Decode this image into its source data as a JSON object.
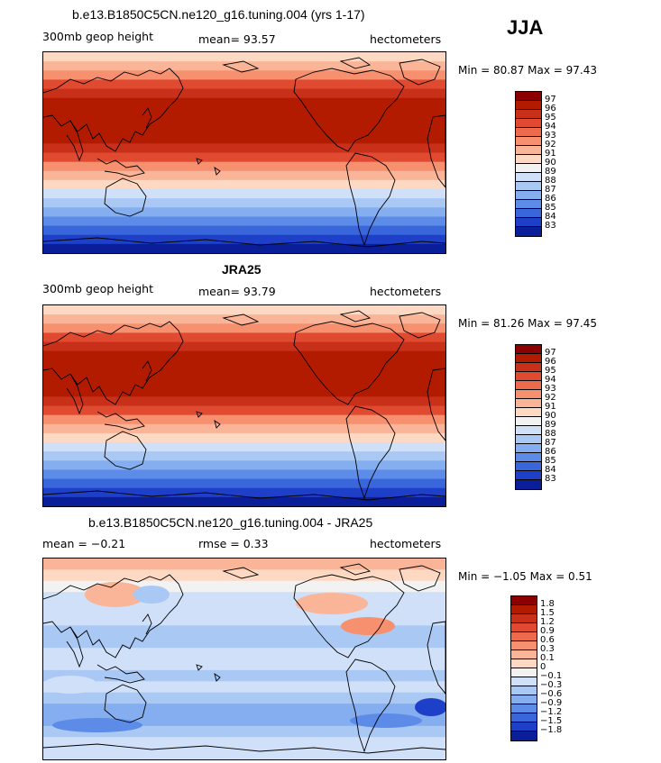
{
  "season": "JJA",
  "panels": [
    {
      "title": "b.e13.B1850C5CN.ne120_g16.tuning.004 (yrs 1-17)",
      "left_label": "300mb geop height",
      "center_label": "mean=  93.57",
      "right_label": "hectometers",
      "stats": "Min =  80.87 Max =  97.43",
      "colorbar": {
        "labels": [
          "97",
          "96",
          "95",
          "94",
          "93",
          "92",
          "91",
          "90",
          "89",
          "88",
          "87",
          "86",
          "85",
          "84",
          "83"
        ],
        "colors": [
          "#8b0000",
          "#b31b00",
          "#c9301a",
          "#e04a30",
          "#ee6a4c",
          "#f6906f",
          "#fab598",
          "#fdd9c4",
          "#f2f2f2",
          "#cfe0f8",
          "#a9c8f4",
          "#84aef0",
          "#5c8ce8",
          "#3a66dc",
          "#1e40c8",
          "#0a1e9a"
        ]
      },
      "bands": [
        "#fdd9c4",
        "#fab598",
        "#f6906f",
        "#e04a30",
        "#c9301a",
        "#b31b00",
        "#b31b00",
        "#b31b00",
        "#b31b00",
        "#b31b00",
        "#c9301a",
        "#e04a30",
        "#f6906f",
        "#fab598",
        "#fdd9c4",
        "#cfe0f8",
        "#a9c8f4",
        "#84aef0",
        "#5c8ce8",
        "#3a66dc",
        "#1e40c8",
        "#0a1e9a"
      ]
    },
    {
      "title": "JRA25",
      "left_label": "300mb geop height",
      "center_label": "mean=  93.79",
      "right_label": "hectometers",
      "stats": "Min =  81.26 Max =  97.45",
      "colorbar": {
        "labels": [
          "97",
          "96",
          "95",
          "94",
          "93",
          "92",
          "91",
          "90",
          "89",
          "88",
          "87",
          "86",
          "85",
          "84",
          "83"
        ],
        "colors": [
          "#8b0000",
          "#b31b00",
          "#c9301a",
          "#e04a30",
          "#ee6a4c",
          "#f6906f",
          "#fab598",
          "#fdd9c4",
          "#f2f2f2",
          "#cfe0f8",
          "#a9c8f4",
          "#84aef0",
          "#5c8ce8",
          "#3a66dc",
          "#1e40c8",
          "#0a1e9a"
        ]
      },
      "bands": [
        "#fdd9c4",
        "#fab598",
        "#f6906f",
        "#e04a30",
        "#c9301a",
        "#b31b00",
        "#b31b00",
        "#b31b00",
        "#b31b00",
        "#b31b00",
        "#c9301a",
        "#e04a30",
        "#f6906f",
        "#fab598",
        "#fdd9c4",
        "#cfe0f8",
        "#a9c8f4",
        "#84aef0",
        "#5c8ce8",
        "#3a66dc",
        "#1e40c8",
        "#0a1e9a"
      ]
    },
    {
      "title": "b.e13.B1850C5CN.ne120_g16.tuning.004 - JRA25",
      "left_label": "mean =  −0.21",
      "center_label": "rmse =   0.33",
      "right_label": "hectometers",
      "stats": "Min =  −1.05 Max =   0.51",
      "colorbar": {
        "labels": [
          "1.8",
          "1.5",
          "1.2",
          "0.9",
          "0.6",
          "0.3",
          "0.1",
          "0",
          "−0.1",
          "−0.3",
          "−0.6",
          "−0.9",
          "−1.2",
          "−1.5",
          "−1.8"
        ],
        "colors": [
          "#8b0000",
          "#b31b00",
          "#c9301a",
          "#e04a30",
          "#ee6a4c",
          "#f6906f",
          "#fab598",
          "#fdd9c4",
          "#f2f2f2",
          "#cfe0f8",
          "#a9c8f4",
          "#84aef0",
          "#5c8ce8",
          "#3a66dc",
          "#1e40c8",
          "#0a1e9a"
        ]
      },
      "bands": [
        "#fab598",
        "#fdd9c4",
        "#f2f2f2",
        "#cfe0f8",
        "#cfe0f8",
        "#cfe0f8",
        "#a9c8f4",
        "#a9c8f4",
        "#cfe0f8",
        "#cfe0f8",
        "#a9c8f4",
        "#cfe0f8",
        "#a9c8f4",
        "#84aef0",
        "#84aef0",
        "#a9c8f4",
        "#cfe0f8",
        "#cfe0f8"
      ]
    }
  ]
}
